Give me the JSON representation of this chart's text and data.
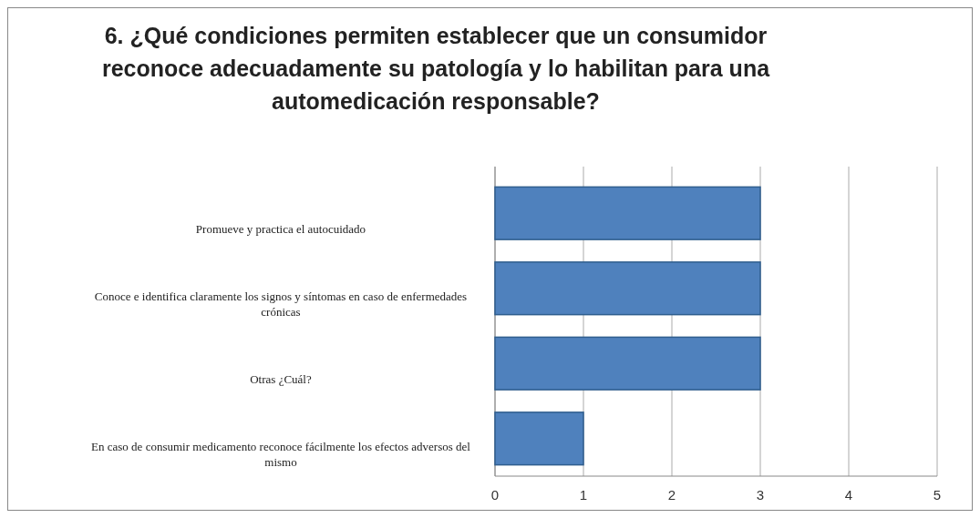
{
  "chart_data": {
    "type": "bar",
    "orientation": "horizontal",
    "title": "6. ¿Qué  condiciones permiten establecer que un consumidor reconoce adecuadamente su  patología y lo habilitan para una automedicación responsable?",
    "categories": [
      "Promueve y practica el autocuidado",
      "Conoce  e identifica claramente los signos  y síntomas en caso de enfermedades crónicas",
      "Otras ¿Cuál?",
      "En caso de consumir medicamento reconoce fácilmente los efectos adversos del mismo"
    ],
    "values": [
      3,
      3,
      3,
      1
    ],
    "color": "#4f81bd",
    "xlim": [
      0,
      5
    ],
    "xticks": [
      0,
      1,
      2,
      3,
      4,
      5
    ],
    "grid": "x"
  }
}
